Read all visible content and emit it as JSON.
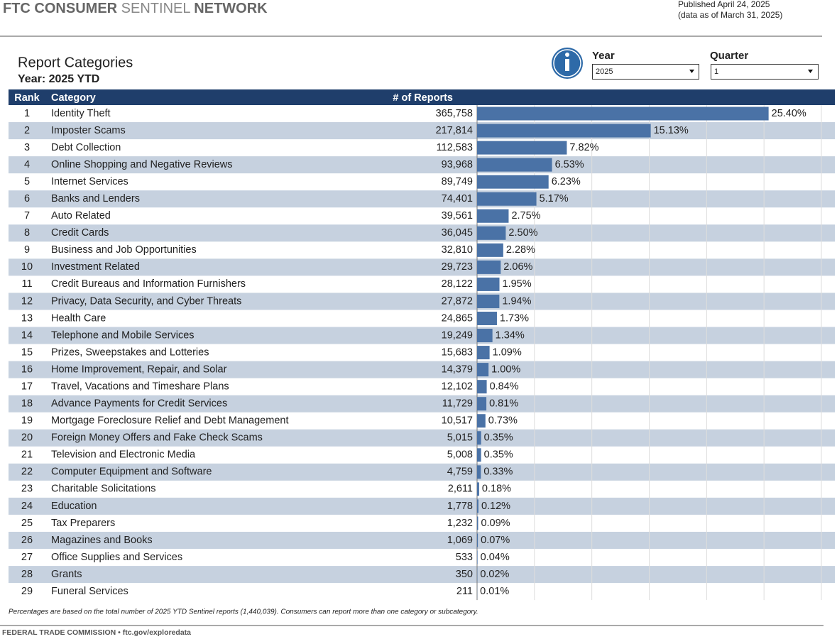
{
  "header": {
    "title_parts": [
      "FTC CONSUMER",
      "SENTINEL",
      "NETWORK"
    ],
    "published": "Published April 24, 2025",
    "data_as_of": "(data as of March 31, 2025)"
  },
  "filters": {
    "year_label": "Year",
    "year": "2025",
    "quarter_label": "Quarter",
    "quarter": "1"
  },
  "chart_data": {
    "type": "bar",
    "title": "Report Categories",
    "subtitle": "Year: 2025 YTD",
    "columns": [
      "Rank",
      "Category",
      "# of Reports"
    ],
    "ranks": [
      1,
      2,
      3,
      4,
      5,
      6,
      7,
      8,
      9,
      10,
      11,
      12,
      13,
      14,
      15,
      16,
      17,
      18,
      19,
      20,
      21,
      22,
      23,
      24,
      25,
      26,
      27,
      28,
      29
    ],
    "categories": [
      "Identity Theft",
      "Imposter Scams",
      "Debt Collection",
      "Online Shopping and Negative Reviews",
      "Internet Services",
      "Banks and Lenders",
      "Auto Related",
      "Credit Cards",
      "Business and Job Opportunities",
      "Investment Related",
      "Credit Bureaus and Information Furnishers",
      "Privacy, Data Security, and Cyber Threats",
      "Health Care",
      "Telephone and Mobile Services",
      "Prizes, Sweepstakes and Lotteries",
      "Home Improvement, Repair, and Solar",
      "Travel, Vacations and Timeshare Plans",
      "Advance Payments for Credit Services",
      "Mortgage Foreclosure Relief and Debt Management",
      "Foreign Money Offers and Fake Check Scams",
      "Television and Electronic Media",
      "Computer Equipment and Software",
      "Charitable Solicitations",
      "Education",
      "Tax Preparers",
      "Magazines and Books",
      "Office Supplies and Services",
      "Grants",
      "Funeral Services"
    ],
    "values": [
      365758,
      217814,
      112583,
      93968,
      89749,
      74401,
      39561,
      36045,
      32810,
      29723,
      28122,
      27872,
      24865,
      19249,
      15683,
      14379,
      12102,
      11729,
      10517,
      5015,
      5008,
      4759,
      2611,
      1778,
      1232,
      1069,
      533,
      350,
      211
    ],
    "value_labels": [
      "365,758",
      "217,814",
      "112,583",
      "93,968",
      "89,749",
      "74,401",
      "39,561",
      "36,045",
      "32,810",
      "29,723",
      "28,122",
      "27,872",
      "24,865",
      "19,249",
      "15,683",
      "14,379",
      "12,102",
      "11,729",
      "10,517",
      "5,015",
      "5,008",
      "4,759",
      "2,611",
      "1,778",
      "1,232",
      "1,069",
      "533",
      "350",
      "211"
    ],
    "percents": [
      25.4,
      15.13,
      7.82,
      6.53,
      6.23,
      5.17,
      2.75,
      2.5,
      2.28,
      2.06,
      1.95,
      1.94,
      1.73,
      1.34,
      1.09,
      1.0,
      0.84,
      0.81,
      0.73,
      0.35,
      0.35,
      0.33,
      0.18,
      0.12,
      0.09,
      0.07,
      0.04,
      0.02,
      0.01
    ],
    "percent_labels": [
      "25.40%",
      "15.13%",
      "7.82%",
      "6.53%",
      "6.23%",
      "5.17%",
      "2.75%",
      "2.50%",
      "2.28%",
      "2.06%",
      "1.95%",
      "1.94%",
      "1.73%",
      "1.34%",
      "1.09%",
      "1.00%",
      "0.84%",
      "0.81%",
      "0.73%",
      "0.35%",
      "0.35%",
      "0.33%",
      "0.18%",
      "0.12%",
      "0.09%",
      "0.07%",
      "0.04%",
      "0.02%",
      "0.01%"
    ],
    "xlim": [
      0,
      30
    ],
    "xgrid": [
      0,
      5,
      10,
      15,
      20,
      25,
      30
    ],
    "color": "#4a72a6",
    "footnote": "Percentages are based on the total number of 2025 YTD Sentinel reports (1,440,039). Consumers can report more than one category or subcategory."
  },
  "footer": "FEDERAL TRADE COMMISSION • ftc.gov/exploredata"
}
